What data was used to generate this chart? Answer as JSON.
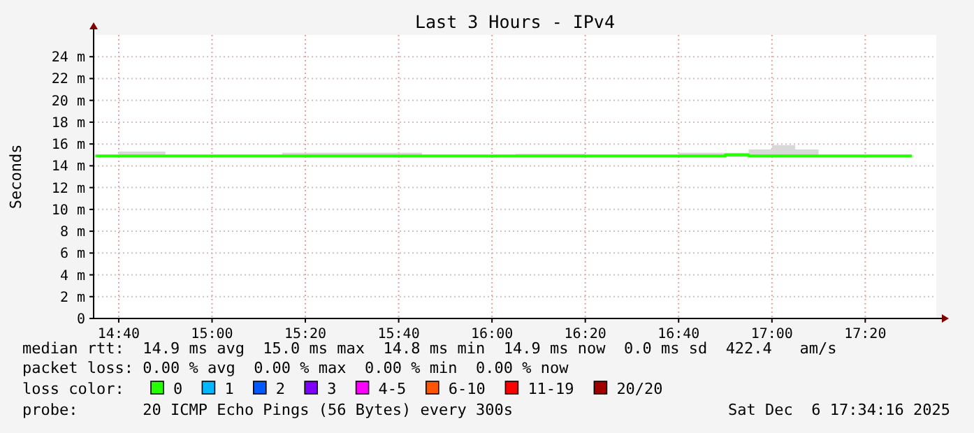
{
  "chart_data": {
    "type": "step",
    "title": "Last 3 Hours - IPv4",
    "ylabel": "Seconds",
    "legend_title": "loss color:",
    "legend": "bottom",
    "grid": true,
    "xlim": [
      14.577,
      17.587
    ],
    "ylim": [
      0,
      26
    ],
    "xticks": [
      {
        "value": 14.6667,
        "label": "14:40"
      },
      {
        "value": 15,
        "label": "15:00"
      },
      {
        "value": 15.3333,
        "label": "15:20"
      },
      {
        "value": 15.6667,
        "label": "15:40"
      },
      {
        "value": 16,
        "label": "16:00"
      },
      {
        "value": 16.3333,
        "label": "16:20"
      },
      {
        "value": 16.6667,
        "label": "16:40"
      },
      {
        "value": 17,
        "label": "17:00"
      },
      {
        "value": 17.3333,
        "label": "17:20"
      }
    ],
    "yticks": [
      0,
      {
        "value": 2,
        "label": "2 m"
      },
      {
        "value": 4,
        "label": "4 m"
      },
      {
        "value": 6,
        "label": "6 m"
      },
      {
        "value": 8,
        "label": "8 m"
      },
      {
        "value": 10,
        "label": "10 m"
      },
      {
        "value": 12,
        "label": "12 m"
      },
      {
        "value": 14,
        "label": "14 m"
      },
      {
        "value": 16,
        "label": "16 m"
      },
      {
        "value": 18,
        "label": "18 m"
      },
      {
        "value": 20,
        "label": "20 m"
      },
      {
        "value": 22,
        "label": "22 m"
      },
      {
        "value": 24,
        "label": "24 m"
      }
    ],
    "x": [
      14.5833,
      14.6667,
      14.75,
      14.8333,
      14.9167,
      15,
      15.0833,
      15.1667,
      15.25,
      15.3333,
      15.4167,
      15.5,
      15.5833,
      15.6667,
      15.75,
      15.8333,
      15.9167,
      16,
      16.0833,
      16.1667,
      16.25,
      16.3333,
      16.4167,
      16.5,
      16.5833,
      16.6667,
      16.75,
      16.8333,
      16.9167,
      17,
      17.0833,
      17.1667,
      17.25,
      17.3333,
      17.4167,
      17.5
    ],
    "series": [
      {
        "name": "0",
        "color": "#26ff00",
        "values": [
          14.9,
          14.9,
          14.9,
          14.9,
          14.9,
          14.9,
          14.9,
          14.9,
          14.9,
          14.9,
          14.9,
          14.9,
          14.9,
          14.9,
          14.9,
          14.9,
          14.9,
          14.9,
          14.9,
          14.9,
          14.9,
          14.9,
          14.9,
          14.9,
          14.9,
          14.9,
          14.9,
          15.0,
          14.9,
          14.9,
          14.9,
          14.9,
          14.9,
          14.9,
          14.9,
          14.9
        ],
        "lower": [
          14.8,
          14.8,
          14.8,
          14.8,
          14.8,
          14.8,
          14.8,
          14.8,
          14.8,
          14.8,
          14.8,
          14.8,
          14.8,
          14.8,
          14.8,
          14.8,
          14.8,
          14.8,
          14.8,
          14.8,
          14.8,
          14.8,
          14.8,
          14.8,
          14.8,
          14.8,
          14.8,
          14.8,
          14.8,
          14.8,
          14.8,
          14.8,
          14.8,
          14.8,
          14.8,
          14.8
        ],
        "upper": [
          15.0,
          15.3,
          15.3,
          15.0,
          15.0,
          15.0,
          15.0,
          15.0,
          15.2,
          15.2,
          15.2,
          15.2,
          15.2,
          15.2,
          15.0,
          15.0,
          15.0,
          15.0,
          15.1,
          15.1,
          15.1,
          15.0,
          15.0,
          15.0,
          15.0,
          15.2,
          15.2,
          15.2,
          15.5,
          15.9,
          15.5,
          15.0,
          15.0,
          15.0,
          15.0,
          15.0
        ]
      },
      {
        "name": "1",
        "color": "#00b8ff",
        "values": [
          null,
          null,
          null,
          null,
          null,
          null,
          null,
          null,
          null,
          null,
          null,
          null,
          null,
          null,
          null,
          null,
          null,
          null,
          null,
          null,
          null,
          null,
          null,
          null,
          null,
          null,
          null,
          null,
          null,
          null,
          null,
          null,
          null,
          null,
          null,
          null
        ]
      },
      {
        "name": "2",
        "color": "#0059ff",
        "values": [
          null,
          null,
          null,
          null,
          null,
          null,
          null,
          null,
          null,
          null,
          null,
          null,
          null,
          null,
          null,
          null,
          null,
          null,
          null,
          null,
          null,
          null,
          null,
          null,
          null,
          null,
          null,
          null,
          null,
          null,
          null,
          null,
          null,
          null,
          null,
          null
        ]
      },
      {
        "name": "3",
        "color": "#7e00ff",
        "values": [
          null,
          null,
          null,
          null,
          null,
          null,
          null,
          null,
          null,
          null,
          null,
          null,
          null,
          null,
          null,
          null,
          null,
          null,
          null,
          null,
          null,
          null,
          null,
          null,
          null,
          null,
          null,
          null,
          null,
          null,
          null,
          null,
          null,
          null,
          null,
          null
        ]
      },
      {
        "name": "4-5",
        "color": "#ff00ff",
        "values": [
          null,
          null,
          null,
          null,
          null,
          null,
          null,
          null,
          null,
          null,
          null,
          null,
          null,
          null,
          null,
          null,
          null,
          null,
          null,
          null,
          null,
          null,
          null,
          null,
          null,
          null,
          null,
          null,
          null,
          null,
          null,
          null,
          null,
          null,
          null,
          null
        ]
      },
      {
        "name": "6-10",
        "color": "#ff5500",
        "values": [
          null,
          null,
          null,
          null,
          null,
          null,
          null,
          null,
          null,
          null,
          null,
          null,
          null,
          null,
          null,
          null,
          null,
          null,
          null,
          null,
          null,
          null,
          null,
          null,
          null,
          null,
          null,
          null,
          null,
          null,
          null,
          null,
          null,
          null,
          null,
          null
        ]
      },
      {
        "name": "11-19",
        "color": "#ff0000",
        "values": [
          null,
          null,
          null,
          null,
          null,
          null,
          null,
          null,
          null,
          null,
          null,
          null,
          null,
          null,
          null,
          null,
          null,
          null,
          null,
          null,
          null,
          null,
          null,
          null,
          null,
          null,
          null,
          null,
          null,
          null,
          null,
          null,
          null,
          null,
          null,
          null
        ]
      },
      {
        "name": "20/20",
        "color": "#a10000",
        "values": [
          null,
          null,
          null,
          null,
          null,
          null,
          null,
          null,
          null,
          null,
          null,
          null,
          null,
          null,
          null,
          null,
          null,
          null,
          null,
          null,
          null,
          null,
          null,
          null,
          null,
          null,
          null,
          null,
          null,
          null,
          null,
          null,
          null,
          null,
          null,
          null
        ]
      }
    ],
    "annotations": [
      "median rtt:  14.9 ms avg  15.0 ms max  14.8 ms min  14.9 ms now  0.0 ms sd  422.4   am/s",
      "packet loss: 0.00 % avg  0.00 % max  0.00 % min  0.00 % now",
      "probe:       20 ICMP Echo Pings (56 Bytes) every 300s",
      "Sat Dec  6 17:34:16 2025"
    ]
  }
}
